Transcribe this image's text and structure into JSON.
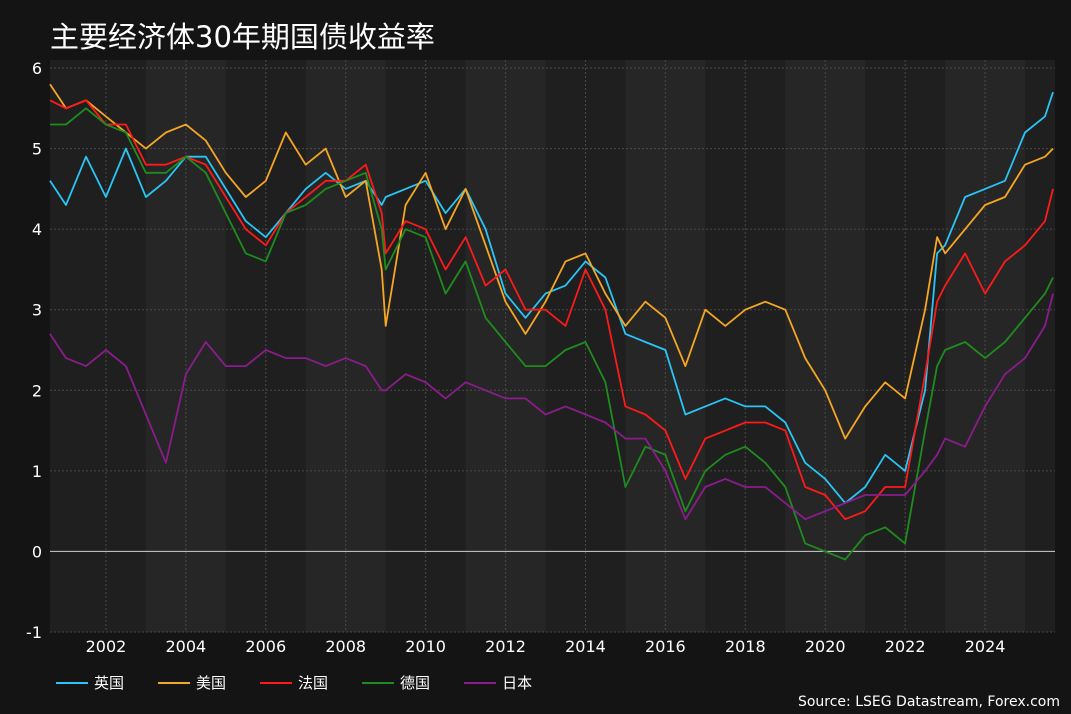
{
  "chart_data": {
    "type": "line",
    "title": "主要经济体30年期国债收益率",
    "xlabel": "",
    "ylabel": "",
    "xlim": [
      2000.6,
      2025.75
    ],
    "ylim": [
      -1,
      6.1
    ],
    "x_ticks": [
      2002,
      2004,
      2006,
      2008,
      2010,
      2012,
      2014,
      2016,
      2018,
      2020,
      2022,
      2024
    ],
    "x_tick_labels": [
      "2002",
      "2004",
      "2006",
      "2008",
      "2010",
      "2012",
      "2014",
      "2016",
      "2018",
      "2020",
      "2022",
      "2024"
    ],
    "y_ticks": [
      -1,
      0,
      1,
      2,
      3,
      4,
      5,
      6
    ],
    "y_tick_labels": [
      "-1",
      "0",
      "1",
      "2",
      "3",
      "4",
      "5",
      "6"
    ],
    "grid": true,
    "legend_position": "bottom",
    "series": [
      {
        "name": "英国",
        "color": "#29c5f6",
        "x": [
          2000.6,
          2001.0,
          2001.5,
          2002.0,
          2002.5,
          2003.0,
          2003.5,
          2004.0,
          2004.5,
          2005.0,
          2005.5,
          2006.0,
          2006.5,
          2007.0,
          2007.5,
          2008.0,
          2008.5,
          2008.9,
          2009.0,
          2009.5,
          2010.0,
          2010.5,
          2011.0,
          2011.5,
          2012.0,
          2012.5,
          2013.0,
          2013.5,
          2014.0,
          2014.5,
          2015.0,
          2015.5,
          2016.0,
          2016.5,
          2017.0,
          2017.5,
          2018.0,
          2018.5,
          2019.0,
          2019.5,
          2020.0,
          2020.5,
          2021.0,
          2021.5,
          2022.0,
          2022.5,
          2022.8,
          2023.0,
          2023.5,
          2024.0,
          2024.5,
          2025.0,
          2025.5,
          2025.7
        ],
        "values": [
          4.6,
          4.3,
          4.9,
          4.4,
          5.0,
          4.4,
          4.6,
          4.9,
          4.9,
          4.5,
          4.1,
          3.9,
          4.2,
          4.5,
          4.7,
          4.5,
          4.6,
          4.3,
          4.4,
          4.5,
          4.6,
          4.2,
          4.5,
          4.0,
          3.2,
          2.9,
          3.2,
          3.3,
          3.6,
          3.4,
          2.7,
          2.6,
          2.5,
          1.7,
          1.8,
          1.9,
          1.8,
          1.8,
          1.6,
          1.1,
          0.9,
          0.6,
          0.8,
          1.2,
          1.0,
          2.0,
          3.7,
          3.8,
          4.4,
          4.5,
          4.6,
          5.2,
          5.4,
          5.7
        ]
      },
      {
        "name": "美国",
        "color": "#f5a623",
        "x": [
          2000.6,
          2001.0,
          2001.5,
          2002.0,
          2002.5,
          2003.0,
          2003.5,
          2004.0,
          2004.5,
          2005.0,
          2005.5,
          2006.0,
          2006.5,
          2007.0,
          2007.5,
          2008.0,
          2008.5,
          2008.9,
          2009.0,
          2009.5,
          2010.0,
          2010.5,
          2011.0,
          2011.5,
          2012.0,
          2012.5,
          2013.0,
          2013.5,
          2014.0,
          2014.5,
          2015.0,
          2015.5,
          2016.0,
          2016.5,
          2017.0,
          2017.5,
          2018.0,
          2018.5,
          2019.0,
          2019.5,
          2020.0,
          2020.5,
          2021.0,
          2021.5,
          2022.0,
          2022.5,
          2022.8,
          2023.0,
          2023.5,
          2024.0,
          2024.5,
          2025.0,
          2025.5,
          2025.7
        ],
        "values": [
          5.8,
          5.5,
          5.6,
          5.4,
          5.2,
          5.0,
          5.2,
          5.3,
          5.1,
          4.7,
          4.4,
          4.6,
          5.2,
          4.8,
          5.0,
          4.4,
          4.6,
          3.5,
          2.8,
          4.3,
          4.7,
          4.0,
          4.5,
          3.8,
          3.1,
          2.7,
          3.1,
          3.6,
          3.7,
          3.2,
          2.8,
          3.1,
          2.9,
          2.3,
          3.0,
          2.8,
          3.0,
          3.1,
          3.0,
          2.4,
          2.0,
          1.4,
          1.8,
          2.1,
          1.9,
          3.0,
          3.9,
          3.7,
          4.0,
          4.3,
          4.4,
          4.8,
          4.9,
          5.0
        ]
      },
      {
        "name": "法国",
        "color": "#ff1a1a",
        "x": [
          2000.6,
          2001.0,
          2001.5,
          2002.0,
          2002.5,
          2003.0,
          2003.5,
          2004.0,
          2004.5,
          2005.0,
          2005.5,
          2006.0,
          2006.5,
          2007.0,
          2007.5,
          2008.0,
          2008.5,
          2008.9,
          2009.0,
          2009.5,
          2010.0,
          2010.5,
          2011.0,
          2011.5,
          2012.0,
          2012.5,
          2013.0,
          2013.5,
          2014.0,
          2014.5,
          2015.0,
          2015.5,
          2016.0,
          2016.5,
          2017.0,
          2017.5,
          2018.0,
          2018.5,
          2019.0,
          2019.5,
          2020.0,
          2020.5,
          2021.0,
          2021.5,
          2022.0,
          2022.5,
          2022.8,
          2023.0,
          2023.5,
          2024.0,
          2024.5,
          2025.0,
          2025.5,
          2025.7
        ],
        "values": [
          5.6,
          5.5,
          5.6,
          5.3,
          5.3,
          4.8,
          4.8,
          4.9,
          4.8,
          4.4,
          4.0,
          3.8,
          4.2,
          4.4,
          4.6,
          4.6,
          4.8,
          4.2,
          3.7,
          4.1,
          4.0,
          3.5,
          3.9,
          3.3,
          3.5,
          3.0,
          3.0,
          2.8,
          3.5,
          3.0,
          1.8,
          1.7,
          1.5,
          0.9,
          1.4,
          1.5,
          1.6,
          1.6,
          1.5,
          0.8,
          0.7,
          0.4,
          0.5,
          0.8,
          0.8,
          2.2,
          3.1,
          3.3,
          3.7,
          3.2,
          3.6,
          3.8,
          4.1,
          4.5
        ]
      },
      {
        "name": "德国",
        "color": "#1e8c1e",
        "x": [
          2000.6,
          2001.0,
          2001.5,
          2002.0,
          2002.5,
          2003.0,
          2003.5,
          2004.0,
          2004.5,
          2005.0,
          2005.5,
          2006.0,
          2006.5,
          2007.0,
          2007.5,
          2008.0,
          2008.5,
          2008.9,
          2009.0,
          2009.5,
          2010.0,
          2010.5,
          2011.0,
          2011.5,
          2012.0,
          2012.5,
          2013.0,
          2013.5,
          2014.0,
          2014.5,
          2015.0,
          2015.5,
          2016.0,
          2016.5,
          2017.0,
          2017.5,
          2018.0,
          2018.5,
          2019.0,
          2019.5,
          2020.0,
          2020.5,
          2021.0,
          2021.5,
          2022.0,
          2022.5,
          2022.8,
          2023.0,
          2023.5,
          2024.0,
          2024.5,
          2025.0,
          2025.5,
          2025.7
        ],
        "values": [
          5.3,
          5.3,
          5.5,
          5.3,
          5.2,
          4.7,
          4.7,
          4.9,
          4.7,
          4.2,
          3.7,
          3.6,
          4.2,
          4.3,
          4.5,
          4.6,
          4.7,
          4.0,
          3.5,
          4.0,
          3.9,
          3.2,
          3.6,
          2.9,
          2.6,
          2.3,
          2.3,
          2.5,
          2.6,
          2.1,
          0.8,
          1.3,
          1.2,
          0.5,
          1.0,
          1.2,
          1.3,
          1.1,
          0.8,
          0.1,
          0.0,
          -0.1,
          0.2,
          0.3,
          0.1,
          1.5,
          2.3,
          2.5,
          2.6,
          2.4,
          2.6,
          2.9,
          3.2,
          3.4
        ]
      },
      {
        "name": "日本",
        "color": "#8b1c8b",
        "x": [
          2000.6,
          2001.0,
          2001.5,
          2002.0,
          2002.5,
          2003.0,
          2003.5,
          2004.0,
          2004.5,
          2005.0,
          2005.5,
          2006.0,
          2006.5,
          2007.0,
          2007.5,
          2008.0,
          2008.5,
          2008.9,
          2009.0,
          2009.5,
          2010.0,
          2010.5,
          2011.0,
          2011.5,
          2012.0,
          2012.5,
          2013.0,
          2013.5,
          2014.0,
          2014.5,
          2015.0,
          2015.5,
          2016.0,
          2016.5,
          2017.0,
          2017.5,
          2018.0,
          2018.5,
          2019.0,
          2019.5,
          2020.0,
          2020.5,
          2021.0,
          2021.5,
          2022.0,
          2022.5,
          2022.8,
          2023.0,
          2023.5,
          2024.0,
          2024.5,
          2025.0,
          2025.5,
          2025.7
        ],
        "values": [
          2.7,
          2.4,
          2.3,
          2.5,
          2.3,
          1.7,
          1.1,
          2.2,
          2.6,
          2.3,
          2.3,
          2.5,
          2.4,
          2.4,
          2.3,
          2.4,
          2.3,
          2.0,
          2.0,
          2.2,
          2.1,
          1.9,
          2.1,
          2.0,
          1.9,
          1.9,
          1.7,
          1.8,
          1.7,
          1.6,
          1.4,
          1.4,
          1.0,
          0.4,
          0.8,
          0.9,
          0.8,
          0.8,
          0.6,
          0.4,
          0.5,
          0.6,
          0.7,
          0.7,
          0.7,
          1.0,
          1.2,
          1.4,
          1.3,
          1.8,
          2.2,
          2.4,
          2.8,
          3.2
        ]
      }
    ]
  },
  "source": "Source: LSEG Datastream, Forex.com"
}
